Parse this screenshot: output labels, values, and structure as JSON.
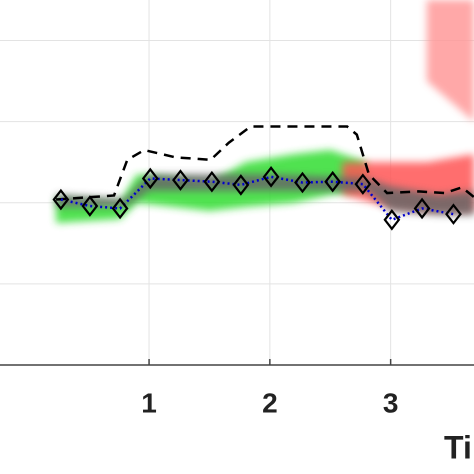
{
  "chart_data": {
    "type": "line",
    "xlabel": "Ti",
    "xlim": [
      -0.234,
      3.69
    ],
    "ylim": [
      0,
      4.5
    ],
    "xticks": [
      1,
      2,
      3
    ],
    "ygrid": [
      1,
      2,
      3,
      4
    ],
    "grid": true,
    "bands": [
      {
        "color": "#33dd33",
        "x": [
          0.23,
          0.76,
          0.9,
          1.5,
          1.8,
          2.2,
          2.5,
          2.8
        ],
        "lower": [
          1.75,
          1.8,
          2.0,
          1.9,
          1.95,
          2.0,
          2.1,
          2.15
        ],
        "upper": [
          2.05,
          2.0,
          2.35,
          2.25,
          2.5,
          2.6,
          2.65,
          2.5
        ]
      },
      {
        "color": "#ff5555",
        "x": [
          2.6,
          3.0,
          3.3,
          3.69
        ],
        "lower": [
          2.1,
          1.95,
          1.9,
          1.9
        ],
        "upper": [
          2.5,
          2.5,
          2.5,
          2.6
        ]
      },
      {
        "color": "#ff9999",
        "x": [
          3.3,
          3.69
        ],
        "lower": [
          3.5,
          3.0
        ],
        "upper": [
          4.5,
          4.5
        ]
      },
      {
        "color": "#666666",
        "x": [
          0.23,
          0.8,
          1.0,
          2.0,
          2.8,
          3.0,
          3.4,
          3.69
        ],
        "lower": [
          1.95,
          1.95,
          2.15,
          2.15,
          2.15,
          1.9,
          1.85,
          1.85
        ],
        "upper": [
          2.1,
          2.05,
          2.35,
          2.35,
          2.3,
          2.2,
          2.1,
          2.15
        ]
      }
    ],
    "series": [
      {
        "color": "#000000",
        "style": "dashed",
        "markers": false,
        "x": [
          0.23,
          0.71,
          0.82,
          0.96,
          1.22,
          1.51,
          1.66,
          1.84,
          2.64,
          2.72,
          2.82,
          2.97,
          3.23,
          3.45,
          3.59,
          3.69
        ],
        "values": [
          2.04,
          2.09,
          2.53,
          2.65,
          2.56,
          2.53,
          2.74,
          2.94,
          2.94,
          2.84,
          2.35,
          2.12,
          2.14,
          2.12,
          2.19,
          2.07
        ]
      },
      {
        "color": "#0000cc",
        "style": "dotted",
        "markers": true,
        "x": [
          0.27,
          0.51,
          0.76,
          1.01,
          1.26,
          1.52,
          1.76,
          2.01,
          2.27,
          2.52,
          2.77,
          3.01,
          3.26,
          3.52
        ],
        "values": [
          2.04,
          1.96,
          1.93,
          2.3,
          2.28,
          2.26,
          2.22,
          2.32,
          2.25,
          2.26,
          2.23,
          1.79,
          1.93,
          1.86
        ]
      }
    ]
  }
}
